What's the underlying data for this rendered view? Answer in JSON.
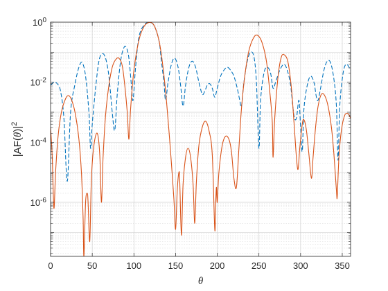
{
  "chart_data": {
    "type": "line",
    "xlabel": "θ",
    "ylabel": {
      "prefix": "|AF(",
      "var": "θ",
      "suffix": ")|",
      "sup": "2"
    },
    "xlim": [
      0,
      360
    ],
    "ylim_log10": [
      -7.8,
      0
    ],
    "yscale": "log",
    "grid": true,
    "minor_grid": true,
    "xticks": [
      {
        "value": 0,
        "label": "0"
      },
      {
        "value": 50,
        "label": "50"
      },
      {
        "value": 100,
        "label": "100"
      },
      {
        "value": 150,
        "label": "150"
      },
      {
        "value": 200,
        "label": "200"
      },
      {
        "value": 250,
        "label": "250"
      },
      {
        "value": 300,
        "label": "300"
      },
      {
        "value": 350,
        "label": "350"
      }
    ],
    "yticks": [
      {
        "exp": 0,
        "base": "10",
        "sup": "0"
      },
      {
        "exp": -2,
        "base": "10",
        "sup": "-2"
      },
      {
        "exp": -4,
        "base": "10",
        "sup": "-4"
      },
      {
        "exp": -6,
        "base": "10",
        "sup": "-6"
      }
    ],
    "series": [
      {
        "style": "dashed",
        "color": "#0072BD",
        "points": [
          [
            0,
            -2.1
          ],
          [
            4,
            -2.0
          ],
          [
            8,
            -2.05
          ],
          [
            12,
            -2.3
          ],
          [
            16,
            -3.2
          ],
          [
            20,
            -5.3
          ],
          [
            24,
            -3.0
          ],
          [
            29,
            -2.1
          ],
          [
            34,
            -1.5
          ],
          [
            38,
            -1.35
          ],
          [
            42,
            -1.8
          ],
          [
            46,
            -3.0
          ],
          [
            48,
            -4.2
          ],
          [
            50,
            -3.4
          ],
          [
            54,
            -2.2
          ],
          [
            58,
            -1.3
          ],
          [
            62,
            -1.05
          ],
          [
            66,
            -1.2
          ],
          [
            70,
            -1.8
          ],
          [
            74,
            -3.0
          ],
          [
            77,
            -3.6
          ],
          [
            80,
            -2.4
          ],
          [
            84,
            -1.3
          ],
          [
            88,
            -0.85
          ],
          [
            91,
            -0.85
          ],
          [
            94,
            -1.2
          ],
          [
            97,
            -2.1
          ],
          [
            99,
            -2.6
          ],
          [
            102,
            -1.5
          ],
          [
            106,
            -0.5
          ],
          [
            112,
            -0.1
          ],
          [
            118,
            -0.01
          ],
          [
            124,
            -0.1
          ],
          [
            130,
            -0.6
          ],
          [
            133,
            -1.3
          ],
          [
            136,
            -2.0
          ],
          [
            138,
            -2.6
          ],
          [
            141,
            -2.0
          ],
          [
            145,
            -1.4
          ],
          [
            149,
            -1.2
          ],
          [
            153,
            -1.5
          ],
          [
            156,
            -2.1
          ],
          [
            159,
            -2.8
          ],
          [
            162,
            -2.1
          ],
          [
            166,
            -1.5
          ],
          [
            170,
            -1.3
          ],
          [
            174,
            -1.5
          ],
          [
            178,
            -2.0
          ],
          [
            182,
            -2.4
          ],
          [
            185,
            -2.3
          ],
          [
            188,
            -2.1
          ],
          [
            191,
            -2.05
          ],
          [
            194,
            -2.2
          ],
          [
            197,
            -2.5
          ],
          [
            200,
            -2.2
          ],
          [
            204,
            -1.8
          ],
          [
            208,
            -1.6
          ],
          [
            212,
            -1.5
          ],
          [
            216,
            -1.6
          ],
          [
            220,
            -1.8
          ],
          [
            224,
            -2.2
          ],
          [
            227,
            -2.6
          ],
          [
            229,
            -2.8
          ],
          [
            232,
            -2.0
          ],
          [
            236,
            -1.3
          ],
          [
            240,
            -1.0
          ],
          [
            244,
            -1.15
          ],
          [
            247,
            -2.0
          ],
          [
            250,
            -4.2
          ],
          [
            252,
            -2.6
          ],
          [
            256,
            -1.7
          ],
          [
            260,
            -1.5
          ],
          [
            264,
            -1.7
          ],
          [
            267,
            -2.2
          ],
          [
            270,
            -2.0
          ],
          [
            275,
            -1.6
          ],
          [
            280,
            -1.4
          ],
          [
            284,
            -1.6
          ],
          [
            288,
            -2.1
          ],
          [
            292,
            -3.1
          ],
          [
            295,
            -3.2
          ],
          [
            298,
            -2.6
          ],
          [
            300,
            -3.5
          ],
          [
            302,
            -4.3
          ],
          [
            304,
            -2.9
          ],
          [
            308,
            -2.1
          ],
          [
            312,
            -1.8
          ],
          [
            316,
            -2.0
          ],
          [
            319,
            -2.5
          ],
          [
            321,
            -2.6
          ],
          [
            324,
            -2.2
          ],
          [
            328,
            -1.6
          ],
          [
            332,
            -1.3
          ],
          [
            336,
            -1.35
          ],
          [
            340,
            -1.9
          ],
          [
            343,
            -2.8
          ],
          [
            345,
            -4.6
          ],
          [
            347,
            -2.8
          ],
          [
            351,
            -1.7
          ],
          [
            355,
            -1.4
          ],
          [
            360,
            -1.6
          ]
        ]
      },
      {
        "style": "solid",
        "color": "#D95319",
        "points": [
          [
            0,
            -3.5
          ],
          [
            2,
            -4.5
          ],
          [
            4,
            -6.2
          ],
          [
            6,
            -5.0
          ],
          [
            9,
            -3.8
          ],
          [
            13,
            -3.0
          ],
          [
            18,
            -2.55
          ],
          [
            22,
            -2.45
          ],
          [
            26,
            -2.65
          ],
          [
            30,
            -3.1
          ],
          [
            34,
            -3.9
          ],
          [
            37,
            -5.0
          ],
          [
            39,
            -6.5
          ],
          [
            40,
            -7.8
          ],
          [
            42,
            -6.0
          ],
          [
            44,
            -5.7
          ],
          [
            45,
            -6.0
          ],
          [
            47,
            -7.3
          ],
          [
            49,
            -5.2
          ],
          [
            52,
            -4.1
          ],
          [
            56,
            -3.7
          ],
          [
            59,
            -4.4
          ],
          [
            61,
            -6.0
          ],
          [
            63,
            -4.5
          ],
          [
            66,
            -3.1
          ],
          [
            70,
            -2.1
          ],
          [
            74,
            -1.5
          ],
          [
            78,
            -1.25
          ],
          [
            82,
            -1.2
          ],
          [
            86,
            -1.45
          ],
          [
            89,
            -2.1
          ],
          [
            92,
            -3.0
          ],
          [
            94,
            -3.9
          ],
          [
            96,
            -2.9
          ],
          [
            100,
            -1.6
          ],
          [
            106,
            -0.6
          ],
          [
            112,
            -0.15
          ],
          [
            118,
            -0.01
          ],
          [
            124,
            -0.1
          ],
          [
            130,
            -0.6
          ],
          [
            134,
            -1.3
          ],
          [
            138,
            -2.3
          ],
          [
            142,
            -3.6
          ],
          [
            145,
            -4.7
          ],
          [
            148,
            -5.9
          ],
          [
            150,
            -6.9
          ],
          [
            152,
            -5.6
          ],
          [
            154,
            -5.0
          ],
          [
            155,
            -5.3
          ],
          [
            157,
            -7.1
          ],
          [
            159,
            -5.4
          ],
          [
            162,
            -4.5
          ],
          [
            165,
            -4.2
          ],
          [
            168,
            -4.5
          ],
          [
            171,
            -5.4
          ],
          [
            173,
            -6.7
          ],
          [
            175,
            -5.3
          ],
          [
            178,
            -4.1
          ],
          [
            182,
            -3.5
          ],
          [
            186,
            -3.3
          ],
          [
            190,
            -3.6
          ],
          [
            194,
            -4.4
          ],
          [
            197,
            -6.9
          ],
          [
            198,
            -6.1
          ],
          [
            199,
            -5.5
          ],
          [
            200,
            -6.0
          ],
          [
            202,
            -5.0
          ],
          [
            206,
            -4.1
          ],
          [
            210,
            -3.8
          ],
          [
            214,
            -3.9
          ],
          [
            217,
            -4.3
          ],
          [
            220,
            -5.2
          ],
          [
            223,
            -5.5
          ],
          [
            226,
            -4.2
          ],
          [
            229,
            -2.9
          ],
          [
            233,
            -1.8
          ],
          [
            238,
            -0.95
          ],
          [
            244,
            -0.5
          ],
          [
            249,
            -0.45
          ],
          [
            254,
            -0.7
          ],
          [
            259,
            -1.3
          ],
          [
            263,
            -2.3
          ],
          [
            266,
            -3.3
          ],
          [
            267,
            -4.5
          ],
          [
            269,
            -3.2
          ],
          [
            273,
            -1.8
          ],
          [
            277,
            -1.15
          ],
          [
            281,
            -1.1
          ],
          [
            285,
            -1.35
          ],
          [
            289,
            -2.2
          ],
          [
            292,
            -3.3
          ],
          [
            295,
            -4.5
          ],
          [
            297,
            -4.9
          ],
          [
            299,
            -4.2
          ],
          [
            302,
            -3.4
          ],
          [
            304,
            -3.25
          ],
          [
            307,
            -3.6
          ],
          [
            310,
            -4.4
          ],
          [
            313,
            -5.2
          ],
          [
            315,
            -4.5
          ],
          [
            318,
            -3.5
          ],
          [
            321,
            -2.8
          ],
          [
            325,
            -2.4
          ],
          [
            329,
            -2.45
          ],
          [
            333,
            -2.8
          ],
          [
            337,
            -3.5
          ],
          [
            340,
            -4.4
          ],
          [
            343,
            -5.6
          ],
          [
            344,
            -5.8
          ],
          [
            346,
            -4.5
          ],
          [
            349,
            -3.6
          ],
          [
            353,
            -3.1
          ],
          [
            357,
            -3.05
          ],
          [
            360,
            -3.2
          ]
        ]
      }
    ]
  }
}
